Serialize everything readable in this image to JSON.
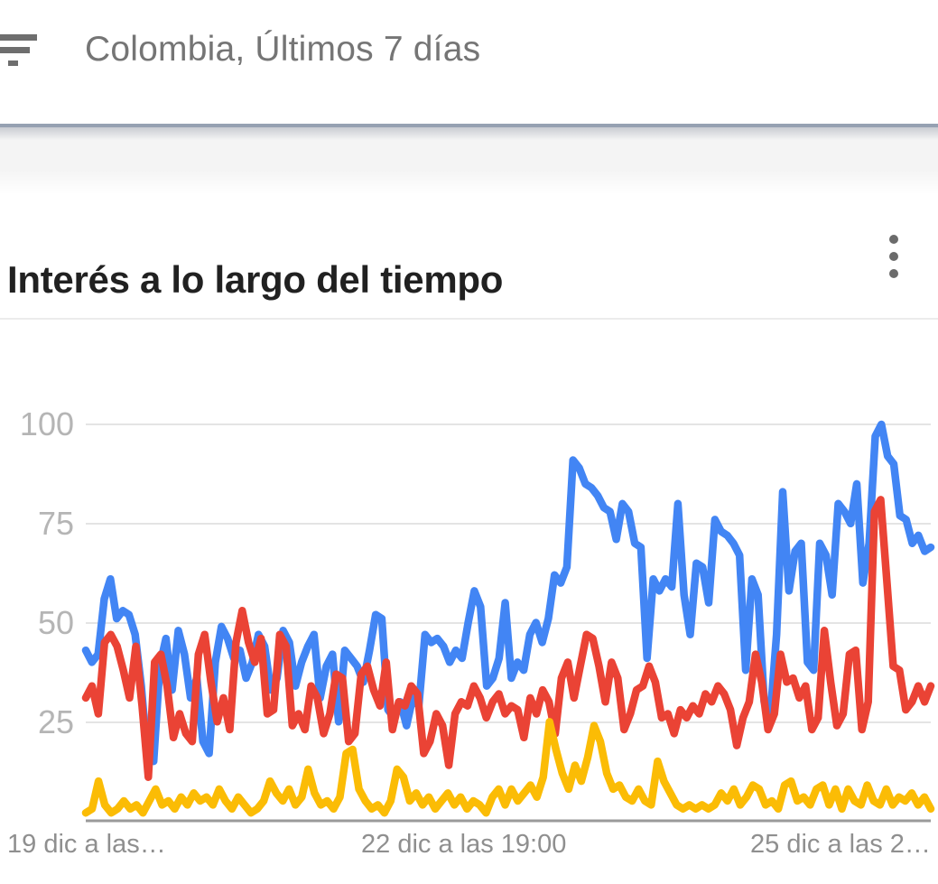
{
  "header": {
    "filter_label": "Colombia, Últimos 7 días"
  },
  "card": {
    "title": "Interés a lo largo del tiempo"
  },
  "colors": {
    "blue": "#4285F4",
    "red": "#EA4335",
    "yellow": "#FBBC05",
    "gridline": "#e4e4e4",
    "axis_baseline": "#9a9a9a",
    "header_text": "#757575",
    "title_text": "#212121"
  },
  "chart_data": {
    "type": "line",
    "title": "Interés a lo largo del tiempo",
    "xlabel": "",
    "ylabel": "",
    "ylim": [
      0,
      100
    ],
    "grid": true,
    "legend": "none",
    "y_ticks": [
      25,
      50,
      75,
      100
    ],
    "y_tick_display": [
      "100",
      "75",
      "50",
      "25"
    ],
    "x_tick_labels": [
      "19 dic a las…",
      "22 dic a las 19:00",
      "25 dic a las 2…"
    ],
    "series": [
      {
        "name": "blue-series",
        "color": "#4285F4",
        "values": [
          43,
          40,
          42,
          56,
          61,
          51,
          53,
          52,
          47,
          34,
          16,
          15,
          39,
          46,
          33,
          48,
          42,
          31,
          36,
          20,
          17,
          40,
          49,
          46,
          41,
          43,
          36,
          40,
          47,
          44,
          33,
          36,
          48,
          45,
          34,
          40,
          44,
          47,
          31,
          39,
          42,
          25,
          43,
          41,
          39,
          35,
          43,
          52,
          51,
          28,
          26,
          30,
          24,
          31,
          29,
          47,
          45,
          46,
          44,
          40,
          43,
          41,
          50,
          58,
          54,
          34,
          36,
          41,
          55,
          36,
          40,
          38,
          47,
          50,
          45,
          51,
          62,
          60,
          64,
          91,
          89,
          85,
          84,
          82,
          79,
          78,
          71,
          80,
          78,
          70,
          69,
          41,
          61,
          58,
          61,
          59,
          80,
          57,
          47,
          65,
          64,
          55,
          76,
          73,
          72,
          70,
          67,
          38,
          61,
          57,
          30,
          27,
          47,
          83,
          58,
          68,
          70,
          40,
          38,
          70,
          67,
          57,
          80,
          78,
          75,
          85,
          60,
          70,
          97,
          100,
          92,
          90,
          77,
          76,
          70,
          72,
          68,
          69
        ]
      },
      {
        "name": "red-series",
        "color": "#EA4335",
        "values": [
          31,
          34,
          27,
          45,
          47,
          44,
          38,
          31,
          44,
          29,
          11,
          40,
          42,
          34,
          21,
          27,
          22,
          20,
          42,
          47,
          35,
          25,
          31,
          23,
          45,
          53,
          45,
          40,
          46,
          27,
          28,
          47,
          44,
          24,
          27,
          23,
          34,
          31,
          22,
          27,
          37,
          36,
          20,
          22,
          37,
          39,
          33,
          29,
          40,
          23,
          30,
          29,
          34,
          32,
          17,
          20,
          27,
          24,
          14,
          27,
          30,
          29,
          34,
          31,
          26,
          30,
          32,
          27,
          29,
          28,
          21,
          31,
          27,
          33,
          30,
          22,
          36,
          40,
          31,
          39,
          47,
          46,
          39,
          30,
          40,
          36,
          23,
          27,
          33,
          34,
          39,
          35,
          26,
          27,
          22,
          28,
          26,
          29,
          27,
          32,
          30,
          34,
          32,
          28,
          19,
          26,
          30,
          42,
          35,
          23,
          27,
          42,
          35,
          36,
          31,
          34,
          23,
          26,
          48,
          35,
          24,
          27,
          42,
          43,
          23,
          30,
          78,
          81,
          60,
          39,
          38,
          28,
          30,
          34,
          30,
          34
        ]
      },
      {
        "name": "yellow-series",
        "color": "#FBBC05",
        "values": [
          2,
          3,
          10,
          4,
          2,
          3,
          5,
          3,
          4,
          2,
          5,
          8,
          4,
          5,
          3,
          6,
          4,
          7,
          5,
          6,
          4,
          8,
          5,
          3,
          6,
          4,
          2,
          3,
          5,
          10,
          7,
          5,
          8,
          4,
          6,
          13,
          7,
          4,
          5,
          3,
          6,
          17,
          18,
          8,
          5,
          3,
          4,
          2,
          5,
          13,
          11,
          5,
          7,
          4,
          6,
          3,
          5,
          7,
          4,
          6,
          3,
          5,
          4,
          2,
          6,
          8,
          4,
          8,
          5,
          7,
          9,
          6,
          11,
          25,
          18,
          12,
          8,
          14,
          10,
          16,
          24,
          20,
          12,
          8,
          9,
          6,
          5,
          8,
          5,
          4,
          15,
          10,
          7,
          4,
          3,
          4,
          3,
          4,
          3,
          4,
          7,
          5,
          8,
          4,
          6,
          9,
          8,
          4,
          5,
          3,
          9,
          10,
          5,
          6,
          4,
          8,
          9,
          4,
          8,
          3,
          8,
          5,
          4,
          9,
          5,
          4,
          8,
          4,
          6,
          5,
          7,
          4,
          6,
          3
        ]
      }
    ]
  }
}
